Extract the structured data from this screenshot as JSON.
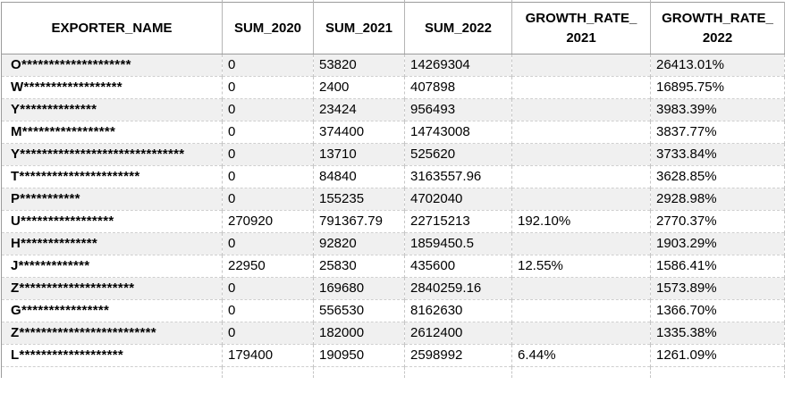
{
  "table": {
    "columns": [
      {
        "id": "name",
        "label": "EXPORTER_NAME"
      },
      {
        "id": "sum2020",
        "label": "SUM_2020"
      },
      {
        "id": "sum2021",
        "label": "SUM_2021"
      },
      {
        "id": "sum2022",
        "label": "SUM_2022"
      },
      {
        "id": "gr2021",
        "label": "GROWTH_RATE_\n2021"
      },
      {
        "id": "gr2022",
        "label": "GROWTH_RATE_\n2022"
      }
    ],
    "rows": [
      {
        "name": "O********************",
        "sum2020": "0",
        "sum2021": "53820",
        "sum2022": "14269304",
        "gr2021": "",
        "gr2022": "26413.01%"
      },
      {
        "name": "W******************",
        "sum2020": "0",
        "sum2021": "2400",
        "sum2022": "407898",
        "gr2021": "",
        "gr2022": "16895.75%"
      },
      {
        "name": "Y**************",
        "sum2020": "0",
        "sum2021": "23424",
        "sum2022": "956493",
        "gr2021": "",
        "gr2022": "3983.39%"
      },
      {
        "name": "M*****************",
        "sum2020": "0",
        "sum2021": "374400",
        "sum2022": "14743008",
        "gr2021": "",
        "gr2022": "3837.77%"
      },
      {
        "name": "Y******************************",
        "sum2020": "0",
        "sum2021": "13710",
        "sum2022": "525620",
        "gr2021": "",
        "gr2022": "3733.84%"
      },
      {
        "name": "T**********************",
        "sum2020": "0",
        "sum2021": "84840",
        "sum2022": "3163557.96",
        "gr2021": "",
        "gr2022": "3628.85%"
      },
      {
        "name": "P***********",
        "sum2020": "0",
        "sum2021": "155235",
        "sum2022": "4702040",
        "gr2021": "",
        "gr2022": "2928.98%"
      },
      {
        "name": "U*****************",
        "sum2020": "270920",
        "sum2021": "791367.79",
        "sum2022": "22715213",
        "gr2021": "192.10%",
        "gr2022": "2770.37%"
      },
      {
        "name": "H**************",
        "sum2020": "0",
        "sum2021": "92820",
        "sum2022": "1859450.5",
        "gr2021": "",
        "gr2022": "1903.29%"
      },
      {
        "name": "J*************",
        "sum2020": "22950",
        "sum2021": "25830",
        "sum2022": "435600",
        "gr2021": "12.55%",
        "gr2022": "1586.41%"
      },
      {
        "name": "Z*********************",
        "sum2020": "0",
        "sum2021": "169680",
        "sum2022": "2840259.16",
        "gr2021": "",
        "gr2022": "1573.89%"
      },
      {
        "name": "G****************",
        "sum2020": "0",
        "sum2021": "556530",
        "sum2022": "8162630",
        "gr2021": "",
        "gr2022": "1366.70%"
      },
      {
        "name": "Z*************************",
        "sum2020": "0",
        "sum2021": "182000",
        "sum2022": "2612400",
        "gr2021": "",
        "gr2022": "1335.38%"
      },
      {
        "name": "L*******************",
        "sum2020": "179400",
        "sum2021": "190950",
        "sum2022": "2598992",
        "gr2021": "6.44%",
        "gr2022": "1261.09%"
      }
    ]
  },
  "colors": {
    "stripe": "#f0f0f0",
    "grid_dashed": "#c6c6c6",
    "header_border": "#9b9b9b",
    "text": "#000000"
  }
}
